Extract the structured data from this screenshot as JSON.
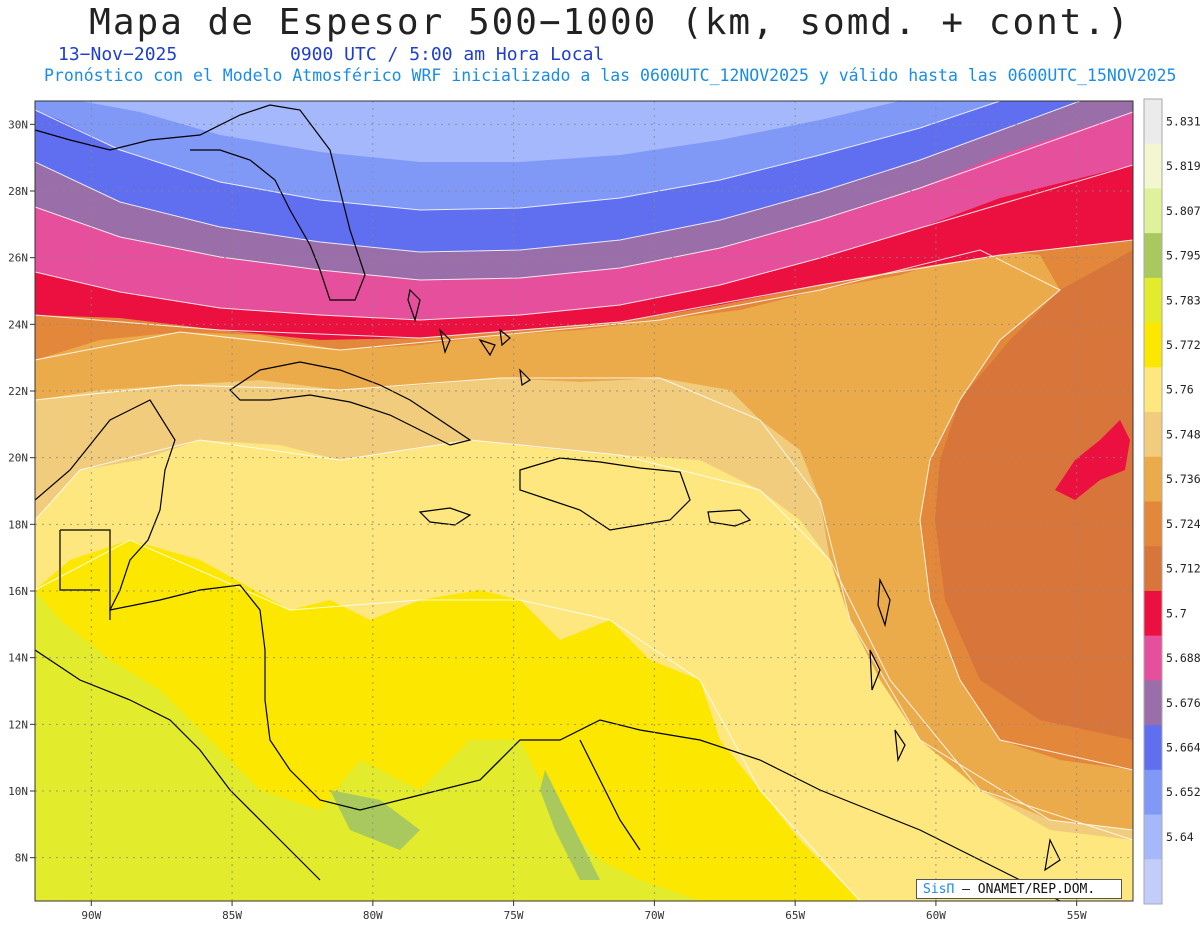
{
  "header": {
    "title": "Mapa de Espesor 500−1000 (km, somd. + cont.)",
    "date": "13−Nov−2025",
    "time": "0900 UTC / 5:00 am Hora Local",
    "subtitle": "Pronóstico con el Modelo Atmosférico WRF inicializado a las 0600UTC_12NOV2025 y válido hasta las  0600UTC_15NOV2025"
  },
  "map": {
    "lon_range": [
      -92,
      -53
    ],
    "lat_range": [
      6.7,
      30.7
    ],
    "lat_ticks": [
      "8N",
      "10N",
      "12N",
      "14N",
      "16N",
      "18N",
      "20N",
      "22N",
      "24N",
      "26N",
      "28N",
      "30N"
    ],
    "lat_values": [
      8,
      10,
      12,
      14,
      16,
      18,
      20,
      22,
      24,
      26,
      28,
      30
    ],
    "lon_ticks": [
      "90W",
      "85W",
      "80W",
      "75W",
      "70W",
      "65W",
      "60W",
      "55W"
    ],
    "lon_values": [
      -90,
      -85,
      -80,
      -75,
      -70,
      -65,
      -60,
      -55
    ]
  },
  "legend": {
    "labels": [
      "5.831",
      "5.819",
      "5.807",
      "5.795",
      "5.783",
      "5.772",
      "5.76",
      "5.748",
      "5.736",
      "5.724",
      "5.712",
      "5.7",
      "5.688",
      "5.676",
      "5.664",
      "5.652",
      "5.64"
    ],
    "colors": [
      "#ebebeb",
      "#f3f6cf",
      "#dff19a",
      "#a9c95e",
      "#e2eb2c",
      "#fbe700",
      "#fde77e",
      "#f0cc7c",
      "#ecab4a",
      "#e3873a",
      "#d8753a",
      "#ec1040",
      "#e64f9b",
      "#9a6ea8",
      "#5f6ff0",
      "#8098f6",
      "#a4b8fb",
      "#c2cdfa"
    ]
  },
  "credit": {
    "sis": "SisΠ",
    "org": "– ONAMET/REP.DOM."
  }
}
